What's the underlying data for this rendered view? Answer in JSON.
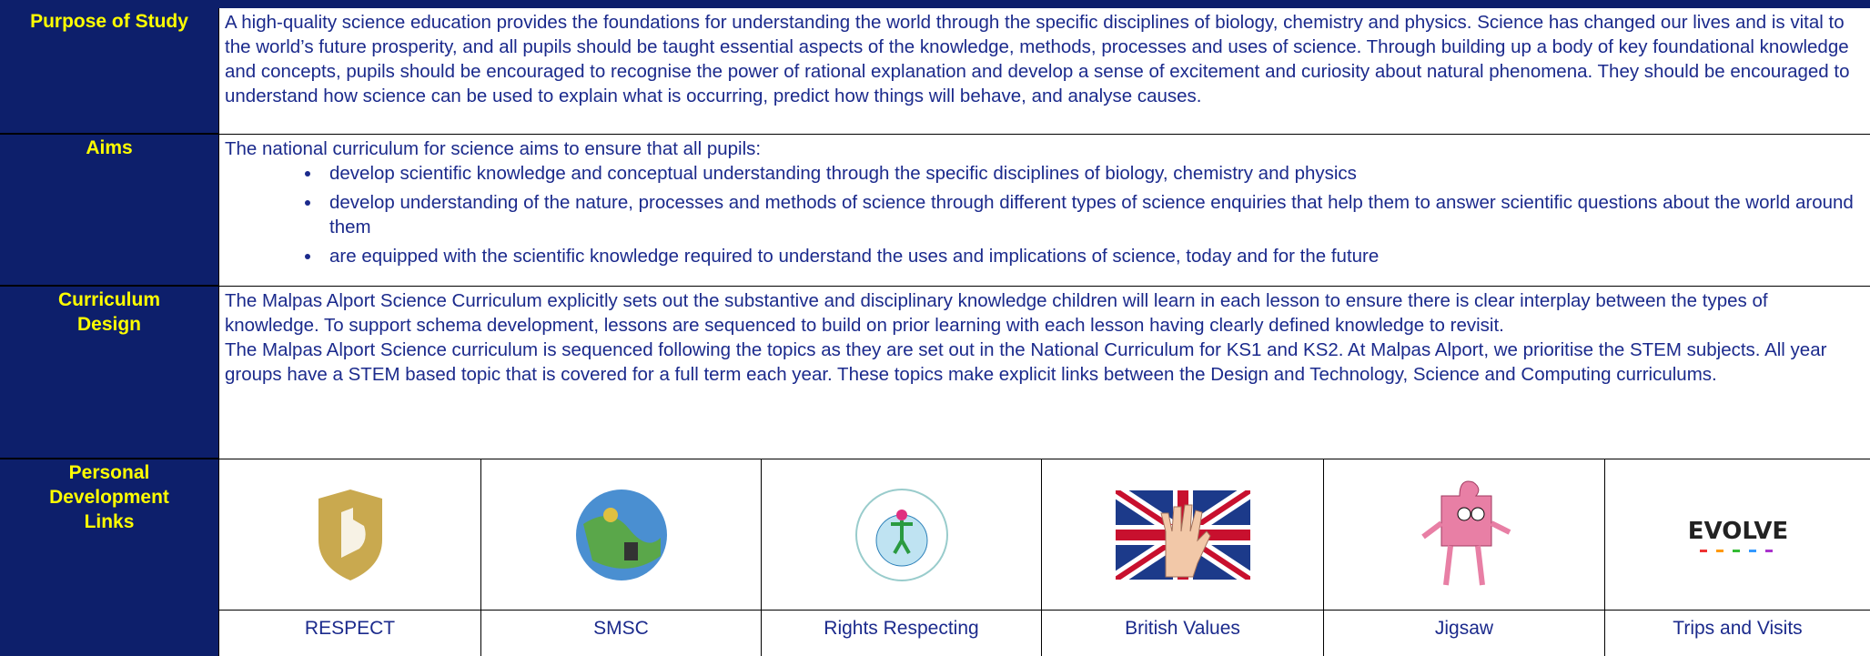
{
  "rows": [
    {
      "label": "Purpose of Study",
      "paragraphs": [
        "A high-quality science education provides the foundations for understanding the world through the specific disciplines of biology, chemistry and physics. Science has changed our lives and is vital to the world’s future prosperity, and all pupils should be taught essential aspects of the knowledge, methods, processes and uses of science. Through building up a body of key foundational knowledge and concepts, pupils should be encouraged to recognise the power of rational explanation and develop a sense of excitement and curiosity about natural phenomena. They should be encouraged to understand how science can be used to explain what is occurring, predict how things will behave, and analyse causes."
      ]
    },
    {
      "label": "Aims",
      "paragraphs": [
        "The national curriculum for science aims to ensure that all pupils:"
      ],
      "bullets": [
        "develop scientific knowledge and conceptual understanding through the specific disciplines of biology, chemistry and physics",
        "develop understanding of the nature, processes and methods of science through different types of science enquiries that help them to answer scientific questions about the world around them",
        "are equipped with the scientific knowledge required to understand the uses and implications of science, today and for the future"
      ]
    },
    {
      "label": "Curriculum Design",
      "paragraphs": [
        "The Malpas Alport Science Curriculum explicitly sets out the substantive and disciplinary knowledge children will learn in each lesson to ensure there is clear interplay between the types of knowledge. To support schema development, lessons are sequenced to build on prior learning with each lesson having clearly defined knowledge to revisit.",
        "The Malpas Alport Science curriculum is sequenced following the topics as they are set out in the National Curriculum for KS1 and KS2. At Malpas Alport, we prioritise the STEM subjects. All year groups have a STEM based topic that is covered for a full term each year. These topics make explicit links between the Design and Technology, Science and Computing curriculums."
      ]
    },
    {
      "label": "Personal Development Links"
    }
  ],
  "links": [
    {
      "caption": "RESPECT"
    },
    {
      "caption": "SMSC"
    },
    {
      "caption": "Rights Respecting"
    },
    {
      "caption": "British Values"
    },
    {
      "caption": "Jigsaw"
    },
    {
      "caption": "Trips and Visits",
      "logo_text": "EVOLVE"
    }
  ]
}
